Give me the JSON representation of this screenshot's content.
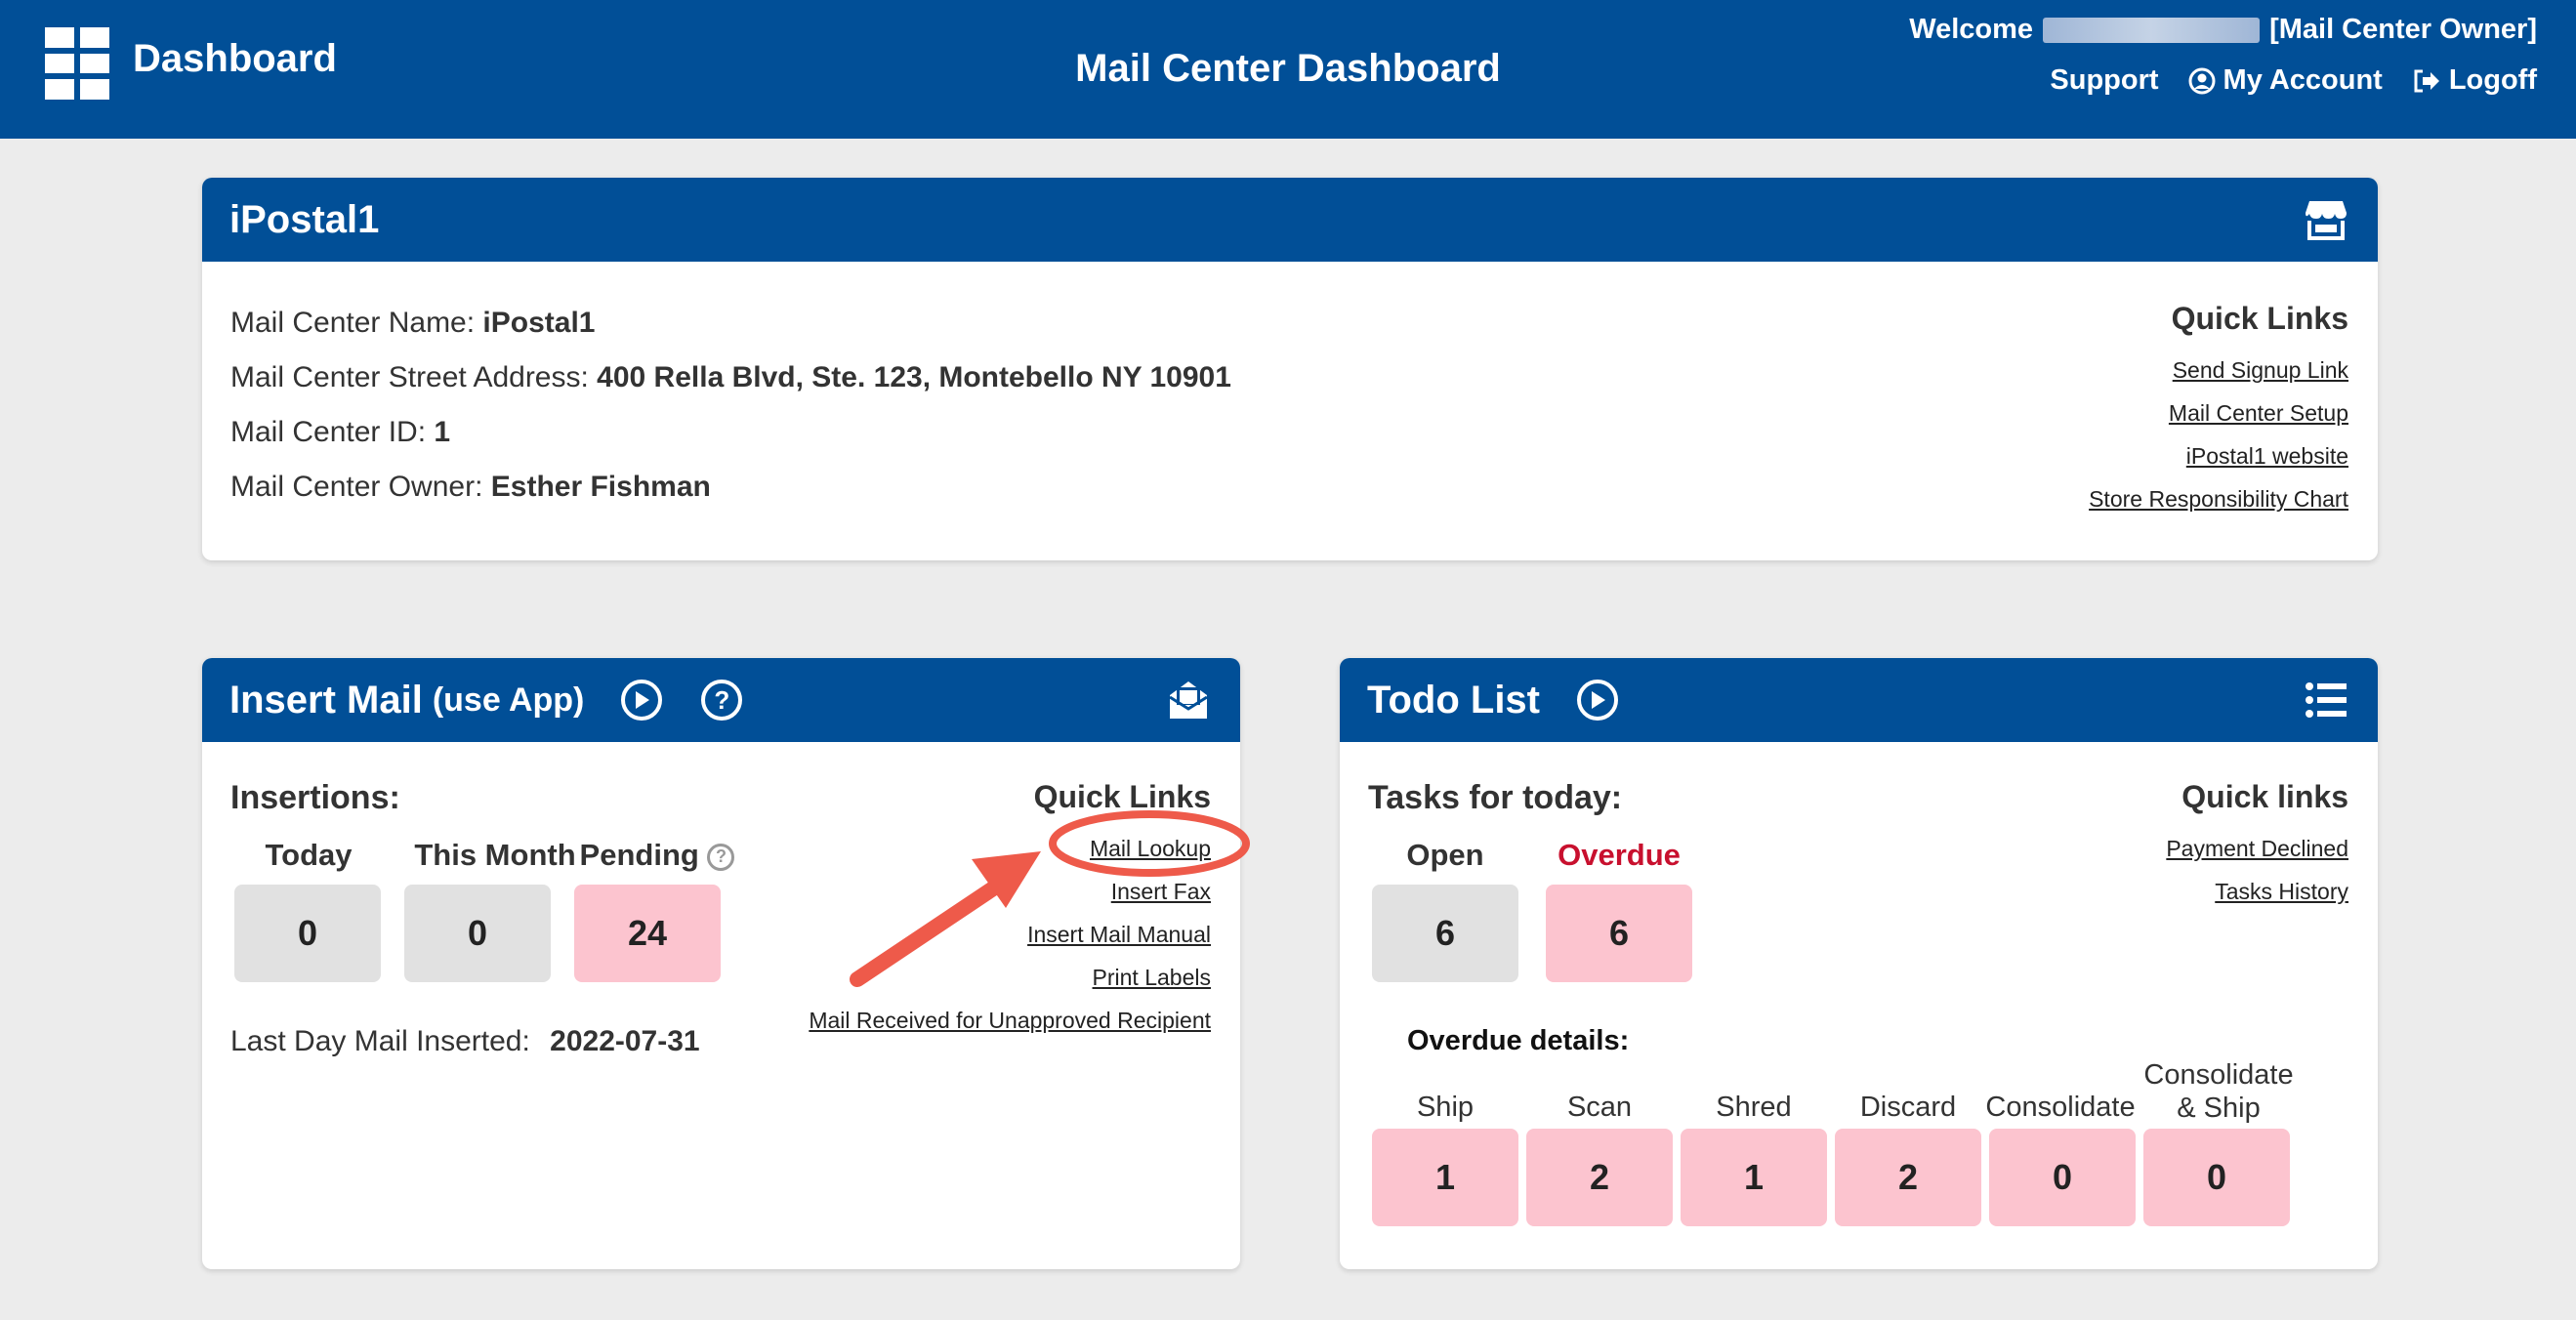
{
  "topbar": {
    "brand": "Dashboard",
    "page_title": "Mail Center Dashboard",
    "welcome_prefix": "Welcome",
    "welcome_role": "[Mail Center Owner]",
    "support": "Support",
    "my_account": "My Account",
    "logoff": "Logoff"
  },
  "mail_center": {
    "title": "iPostal1",
    "name_label": "Mail Center Name:",
    "name_value": "iPostal1",
    "address_label": "Mail Center Street Address:",
    "address_value": "400 Rella Blvd, Ste. 123, Montebello NY 10901",
    "id_label": "Mail Center ID:",
    "id_value": "1",
    "owner_label": "Mail Center Owner:",
    "owner_value": "Esther Fishman",
    "quick_links_title": "Quick Links",
    "quick_links": [
      "Send Signup Link",
      "Mail Center Setup",
      "iPostal1 website",
      "Store Responsibility Chart"
    ]
  },
  "insert_mail": {
    "title": "Insert Mail",
    "title_sub": "(use App)",
    "insertions_label": "Insertions:",
    "today_label": "Today",
    "today_value": "0",
    "month_label": "This Month",
    "month_value": "0",
    "pending_label": "Pending",
    "pending_value": "24",
    "last_day_label": "Last Day Mail Inserted:",
    "last_day_value": "2022-07-31",
    "quick_links_title": "Quick Links",
    "quick_links": [
      "Mail Lookup",
      "Insert Fax",
      "Insert Mail Manual",
      "Print Labels",
      "Mail Received for Unapproved Recipient"
    ]
  },
  "todo": {
    "title": "Todo List",
    "tasks_label": "Tasks for today:",
    "open_label": "Open",
    "open_value": "6",
    "overdue_label": "Overdue",
    "overdue_value": "6",
    "overdue_details_label": "Overdue details:",
    "details": [
      {
        "label": "Ship",
        "value": "1"
      },
      {
        "label": "Scan",
        "value": "2"
      },
      {
        "label": "Shred",
        "value": "1"
      },
      {
        "label": "Discard",
        "value": "2"
      },
      {
        "label": "Consolidate",
        "value": "0"
      },
      {
        "label": "Consolidate & Ship",
        "value": "0"
      }
    ],
    "quick_links_title": "Quick links",
    "quick_links": [
      "Payment Declined",
      "Tasks History"
    ]
  },
  "colors": {
    "header_blue": "#014f97",
    "box_gray": "#e1e1e1",
    "box_pink": "#fcc4cf",
    "overdue_red": "#c8102e",
    "annotation_red": "#ee5a4a"
  }
}
